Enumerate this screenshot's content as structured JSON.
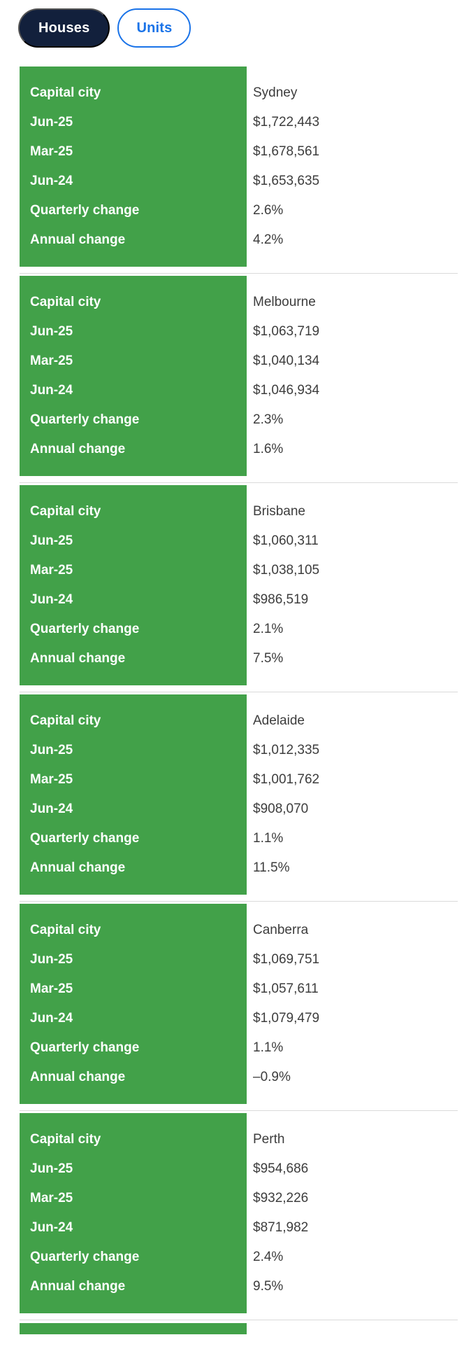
{
  "tabs": [
    {
      "id": "houses",
      "label": "Houses",
      "active": true
    },
    {
      "id": "units",
      "label": "Units",
      "active": false
    }
  ],
  "table": {
    "row_labels": [
      "Capital city",
      "Jun-25",
      "Mar-25",
      "Jun-24",
      "Quarterly change",
      "Annual change"
    ],
    "cities": [
      {
        "name": "Sydney",
        "values": [
          "$1,722,443",
          "$1,678,561",
          "$1,653,635",
          "2.6%",
          "4.2%"
        ]
      },
      {
        "name": "Melbourne",
        "values": [
          "$1,063,719",
          "$1,040,134",
          "$1,046,934",
          "2.3%",
          "1.6%"
        ]
      },
      {
        "name": "Brisbane",
        "values": [
          "$1,060,311",
          "$1,038,105",
          "$986,519",
          "2.1%",
          "7.5%"
        ]
      },
      {
        "name": "Adelaide",
        "values": [
          "$1,012,335",
          "$1,001,762",
          "$908,070",
          "1.1%",
          "11.5%"
        ]
      },
      {
        "name": "Canberra",
        "values": [
          "$1,069,751",
          "$1,057,611",
          "$1,079,479",
          "1.1%",
          "–0.9%"
        ]
      },
      {
        "name": "Perth",
        "values": [
          "$954,686",
          "$932,226",
          "$871,982",
          "2.4%",
          "9.5%"
        ]
      }
    ],
    "partial_next_section_visible": true
  },
  "colors": {
    "label_column_green": "#42a149",
    "active_tab_navy": "#12203c",
    "inactive_tab_blue": "#1a73e8",
    "separator_gray": "#dadada",
    "value_text": "#3d3d3d"
  }
}
